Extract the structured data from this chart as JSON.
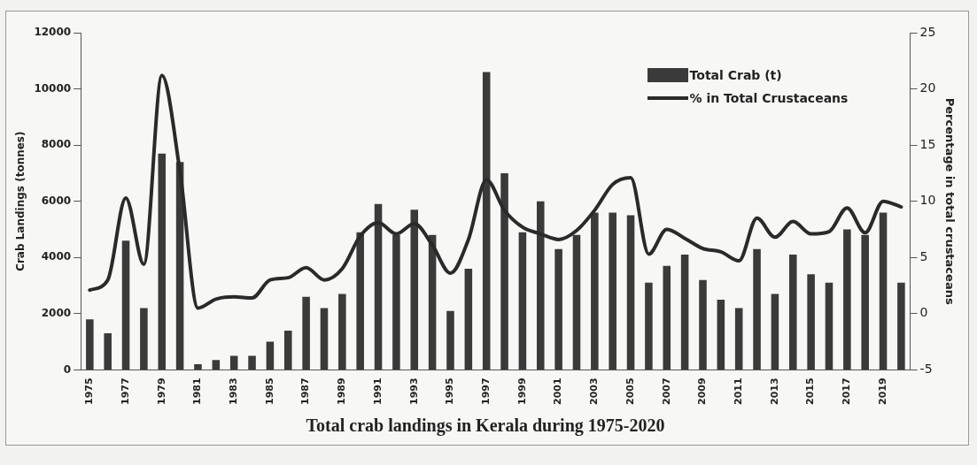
{
  "chart_data": {
    "type": "bar",
    "title": "Total crab landings in Kerala during 1975-2020",
    "ylabel": "Crab Landings (tonnes)",
    "y2label": "Percentage in total crustaceans",
    "categories": [
      "1975",
      null,
      "1977",
      null,
      "1979",
      null,
      "1981",
      null,
      "1983",
      null,
      "1985",
      null,
      "1987",
      null,
      "1989",
      null,
      "1991",
      null,
      "1993",
      null,
      "1995",
      null,
      "1997",
      null,
      "1999",
      null,
      "2001",
      null,
      "2003",
      null,
      "2005",
      null,
      "2007",
      null,
      "2009",
      null,
      "2011",
      null,
      "2013",
      null,
      "2015",
      null,
      "2017",
      null,
      "2019",
      null
    ],
    "series": [
      {
        "name": "Total Crab (t)",
        "color": "#3a3a3a",
        "values": [
          1800,
          1300,
          4600,
          2200,
          7700,
          7400,
          200,
          350,
          500,
          500,
          1000,
          1400,
          2600,
          2200,
          2700,
          4900,
          5900,
          4800,
          5700,
          4800,
          2100,
          3600,
          10600,
          7000,
          4900,
          6000,
          4300,
          4800,
          5600,
          5600,
          5500,
          3100,
          3700,
          4100,
          3200,
          2500,
          2200,
          4300,
          2700,
          4100,
          3400,
          3100,
          5000,
          4800,
          5600,
          3100
        ]
      },
      {
        "name": "% in Total Crustaceans",
        "type": "line",
        "axis": "y2",
        "color": "#2a2a2a",
        "values": [
          2.1,
          3.0,
          10.3,
          4.4,
          21.2,
          12.7,
          0.5,
          1.3,
          1.5,
          1.4,
          3.0,
          3.2,
          4.1,
          3.0,
          4.0,
          6.9,
          8.1,
          7.1,
          8.0,
          6.1,
          3.6,
          6.6,
          11.9,
          9.2,
          7.7,
          7.1,
          6.6,
          7.4,
          9.2,
          11.5,
          12.1,
          5.3,
          7.5,
          6.7,
          5.8,
          5.5,
          4.7,
          8.5,
          6.8,
          8.2,
          7.1,
          7.3,
          9.4,
          7.2,
          10.0,
          9.5
        ]
      }
    ],
    "ylim": [
      0,
      12000
    ],
    "yticks": [
      0,
      2000,
      4000,
      6000,
      8000,
      10000,
      12000
    ],
    "y2lim": [
      -5,
      25
    ],
    "y2ticks": [
      -5,
      0,
      5,
      10,
      15,
      20,
      25
    ],
    "grid": false,
    "legend": "top right",
    "marker": "none",
    "line_style": "solid"
  }
}
